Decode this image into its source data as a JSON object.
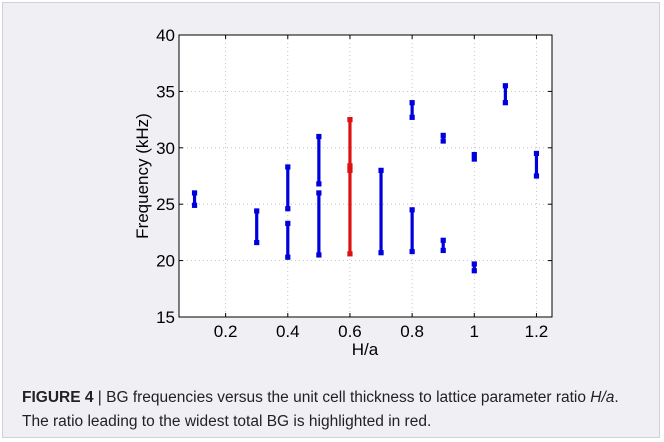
{
  "chart_data": {
    "type": "range",
    "xlabel": "H/a",
    "ylabel": "Frequency (kHz)",
    "xlim": [
      0.05,
      1.25
    ],
    "ylim": [
      15,
      40
    ],
    "xticks": [
      0.2,
      0.4,
      0.6,
      0.8,
      1,
      1.2
    ],
    "xtick_labels": [
      "0.2",
      "0.4",
      "0.6",
      "0.8",
      "1",
      "1.2"
    ],
    "yticks": [
      15,
      20,
      25,
      30,
      35,
      40
    ],
    "ytick_labels": [
      "15",
      "20",
      "25",
      "30",
      "35",
      "40"
    ],
    "grid": true,
    "colors": {
      "normal": "#0000dd",
      "highlight": "#dd1111"
    },
    "bands": [
      {
        "x": 0.1,
        "low": 24.9,
        "high": 26.0
      },
      {
        "x": 0.3,
        "low": 21.6,
        "high": 24.4
      },
      {
        "x": 0.4,
        "low": 20.3,
        "high": 23.3
      },
      {
        "x": 0.4,
        "low": 24.6,
        "high": 28.3
      },
      {
        "x": 0.5,
        "low": 20.5,
        "high": 26.0
      },
      {
        "x": 0.5,
        "low": 26.8,
        "high": 31.0
      },
      {
        "x": 0.6,
        "low": 20.6,
        "high": 28.0,
        "highlight": true
      },
      {
        "x": 0.6,
        "low": 28.4,
        "high": 32.5,
        "highlight": true
      },
      {
        "x": 0.7,
        "low": 20.7,
        "high": 28.0
      },
      {
        "x": 0.8,
        "low": 20.8,
        "high": 24.5
      },
      {
        "x": 0.8,
        "low": 32.7,
        "high": 34.0
      },
      {
        "x": 0.9,
        "low": 20.9,
        "high": 21.8
      },
      {
        "x": 0.9,
        "low": 30.6,
        "high": 31.1
      },
      {
        "x": 1.0,
        "low": 19.1,
        "high": 19.7
      },
      {
        "x": 1.0,
        "low": 29.0,
        "high": 29.4
      },
      {
        "x": 1.1,
        "low": 34.0,
        "high": 35.5
      },
      {
        "x": 1.2,
        "low": 27.5,
        "high": 29.5
      }
    ]
  },
  "caption": {
    "label": "FIGURE 4",
    "text_before": " | BG frequencies versus the unit cell thickness to lattice parameter ratio ",
    "ratio": "H/a",
    "text_after": ". The ratio leading to the widest total BG is highlighted in red."
  }
}
